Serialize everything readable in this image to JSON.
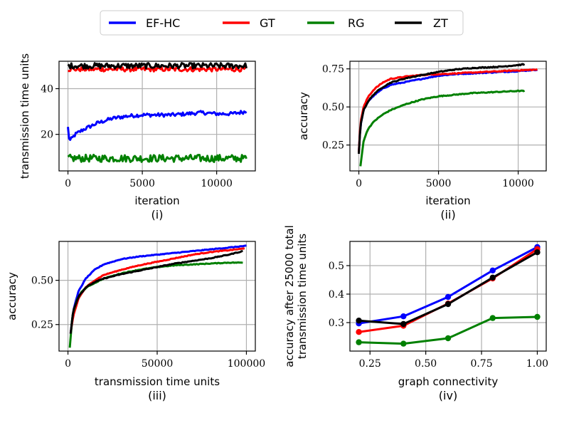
{
  "legend": {
    "entries": [
      {
        "name": "EF-HC",
        "color": "#0000ff"
      },
      {
        "name": "GT",
        "color": "#ff0000"
      },
      {
        "name": "RG",
        "color": "#008000"
      },
      {
        "name": "ZT",
        "color": "#000000"
      }
    ]
  },
  "chart_data": [
    {
      "panel": "(i)",
      "type": "line",
      "title": "",
      "xlabel": "iteration",
      "ylabel": "transmission time units",
      "xlim": [
        -600,
        12600
      ],
      "ylim": [
        4,
        52
      ],
      "xticks": [
        0,
        5000,
        10000
      ],
      "yticks": [
        20,
        40
      ],
      "xtick_labels": [
        "0",
        "5000",
        "10000"
      ],
      "ytick_labels": [
        "20",
        "40"
      ],
      "grid": true,
      "noise": [
        0.8,
        1.0,
        1.6,
        1.2
      ],
      "series": [
        {
          "name": "EF-HC",
          "color": "#0000ff",
          "x": [
            0,
            100,
            500,
            1000,
            2000,
            3000,
            4000,
            5000,
            6000,
            7000,
            8000,
            9000,
            10000,
            11000,
            12000
          ],
          "y": [
            23,
            17,
            20,
            22,
            25,
            27,
            28,
            28.5,
            28.5,
            28.5,
            29,
            29.5,
            29,
            29,
            30
          ]
        },
        {
          "name": "GT",
          "color": "#ff0000",
          "x": [
            0,
            12000
          ],
          "y": [
            48.5,
            48.5
          ]
        },
        {
          "name": "RG",
          "color": "#008000",
          "x": [
            0,
            12000
          ],
          "y": [
            9.5,
            9.5
          ]
        },
        {
          "name": "ZT",
          "color": "#000000",
          "x": [
            0,
            12000
          ],
          "y": [
            50,
            50
          ]
        }
      ]
    },
    {
      "panel": "(ii)",
      "type": "line",
      "title": "",
      "xlabel": "iteration",
      "ylabel": "accuracy",
      "xlim": [
        -560,
        11760
      ],
      "ylim": [
        0.08,
        0.8
      ],
      "xticks": [
        0,
        5000,
        10000
      ],
      "yticks": [
        0.25,
        0.5,
        0.75
      ],
      "xtick_labels": [
        "0",
        "5000",
        "10000"
      ],
      "ytick_labels": [
        "0.25",
        "0.50",
        "0.75"
      ],
      "grid": true,
      "noise": [
        0.003,
        0.003,
        0.003,
        0.003
      ],
      "series": [
        {
          "name": "EF-HC",
          "color": "#0000ff",
          "x": [
            0,
            100,
            300,
            600,
            1000,
            1500,
            2000,
            3000,
            4000,
            5000,
            6000,
            7000,
            8000,
            9000,
            10000,
            11200
          ],
          "y": [
            0.2,
            0.38,
            0.48,
            0.54,
            0.58,
            0.62,
            0.645,
            0.665,
            0.685,
            0.705,
            0.715,
            0.72,
            0.725,
            0.73,
            0.735,
            0.745
          ]
        },
        {
          "name": "GT",
          "color": "#ff0000",
          "x": [
            0,
            100,
            300,
            600,
            1000,
            1500,
            2000,
            3000,
            4000,
            5000,
            6000,
            7000,
            8000,
            9000,
            10000,
            11200
          ],
          "y": [
            0.2,
            0.4,
            0.5,
            0.57,
            0.62,
            0.66,
            0.685,
            0.7,
            0.71,
            0.715,
            0.72,
            0.725,
            0.73,
            0.735,
            0.74,
            0.745
          ]
        },
        {
          "name": "RG",
          "color": "#008000",
          "x": [
            100,
            300,
            600,
            1000,
            1500,
            2000,
            3000,
            4000,
            5000,
            6000,
            7000,
            8000,
            9000,
            10000,
            10400
          ],
          "y": [
            0.11,
            0.28,
            0.36,
            0.41,
            0.45,
            0.48,
            0.52,
            0.55,
            0.57,
            0.58,
            0.59,
            0.595,
            0.6,
            0.605,
            0.605
          ]
        },
        {
          "name": "ZT",
          "color": "#000000",
          "x": [
            0,
            100,
            300,
            600,
            1000,
            1500,
            2000,
            3000,
            4000,
            5000,
            6000,
            7000,
            8000,
            9000,
            10000,
            10400
          ],
          "y": [
            0.19,
            0.38,
            0.48,
            0.54,
            0.59,
            0.63,
            0.66,
            0.69,
            0.71,
            0.73,
            0.745,
            0.755,
            0.76,
            0.765,
            0.775,
            0.78
          ]
        }
      ]
    },
    {
      "panel": "(iii)",
      "type": "line",
      "title": "",
      "xlabel": "transmission time units",
      "ylabel": "accuracy",
      "xlim": [
        -5000,
        105000
      ],
      "ylim": [
        0.1,
        0.72
      ],
      "xticks": [
        0,
        50000,
        100000
      ],
      "yticks": [
        0.25,
        0.5
      ],
      "xtick_labels": [
        "0",
        "50000",
        "100000"
      ],
      "ytick_labels": [
        "0.25",
        "0.50"
      ],
      "grid": true,
      "noise": [
        0.002,
        0.002,
        0.002,
        0.002
      ],
      "series": [
        {
          "name": "EF-HC",
          "color": "#0000ff",
          "x": [
            1500,
            3000,
            6000,
            10000,
            15000,
            20000,
            30000,
            40000,
            50000,
            60000,
            70000,
            80000,
            90000,
            100000
          ],
          "y": [
            0.2,
            0.33,
            0.44,
            0.51,
            0.56,
            0.59,
            0.62,
            0.635,
            0.645,
            0.655,
            0.665,
            0.675,
            0.685,
            0.695
          ]
        },
        {
          "name": "GT",
          "color": "#ff0000",
          "x": [
            1500,
            3000,
            6000,
            10000,
            15000,
            20000,
            30000,
            40000,
            50000,
            60000,
            70000,
            80000,
            90000,
            99000
          ],
          "y": [
            0.2,
            0.3,
            0.4,
            0.46,
            0.5,
            0.53,
            0.56,
            0.585,
            0.605,
            0.625,
            0.645,
            0.66,
            0.67,
            0.68
          ]
        },
        {
          "name": "RG",
          "color": "#008000",
          "x": [
            1000,
            2500,
            5000,
            8000,
            12000,
            20000,
            30000,
            40000,
            50000,
            60000,
            70000,
            80000,
            90000,
            98000
          ],
          "y": [
            0.12,
            0.3,
            0.39,
            0.44,
            0.47,
            0.51,
            0.54,
            0.56,
            0.575,
            0.585,
            0.59,
            0.595,
            0.6,
            0.6
          ]
        },
        {
          "name": "ZT",
          "color": "#000000",
          "x": [
            1500,
            3000,
            6000,
            10000,
            15000,
            20000,
            30000,
            40000,
            50000,
            60000,
            70000,
            80000,
            90000,
            98000
          ],
          "y": [
            0.2,
            0.33,
            0.41,
            0.46,
            0.49,
            0.51,
            0.535,
            0.555,
            0.575,
            0.595,
            0.61,
            0.625,
            0.645,
            0.665
          ]
        }
      ]
    },
    {
      "panel": "(iv)",
      "type": "line",
      "markers": true,
      "title": "",
      "xlabel": "graph connectivity",
      "ylabel": "accuracy after  25000 total transmission time units",
      "ylabel_lines": [
        "accuracy after  25000 total",
        "transmission time units"
      ],
      "xlim": [
        0.16,
        1.04
      ],
      "ylim": [
        0.2,
        0.585
      ],
      "xticks": [
        0.25,
        0.5,
        0.75,
        1.0
      ],
      "yticks": [
        0.3,
        0.4,
        0.5
      ],
      "xtick_labels": [
        "0.25",
        "0.50",
        "0.75",
        "1.00"
      ],
      "ytick_labels": [
        "0.3",
        "0.4",
        "0.5"
      ],
      "grid": true,
      "noise": [
        0,
        0,
        0,
        0
      ],
      "series": [
        {
          "name": "EF-HC",
          "color": "#0000ff",
          "x": [
            0.2,
            0.4,
            0.6,
            0.8,
            1.0
          ],
          "y": [
            0.297,
            0.322,
            0.39,
            0.483,
            0.565
          ]
        },
        {
          "name": "GT",
          "color": "#ff0000",
          "x": [
            0.2,
            0.4,
            0.6,
            0.8,
            1.0
          ],
          "y": [
            0.267,
            0.289,
            0.367,
            0.455,
            0.558
          ]
        },
        {
          "name": "RG",
          "color": "#008000",
          "x": [
            0.2,
            0.4,
            0.6,
            0.8,
            1.0
          ],
          "y": [
            0.231,
            0.226,
            0.245,
            0.316,
            0.32
          ]
        },
        {
          "name": "ZT",
          "color": "#000000",
          "x": [
            0.2,
            0.4,
            0.6,
            0.8,
            1.0
          ],
          "y": [
            0.307,
            0.295,
            0.365,
            0.458,
            0.547
          ]
        }
      ]
    }
  ]
}
